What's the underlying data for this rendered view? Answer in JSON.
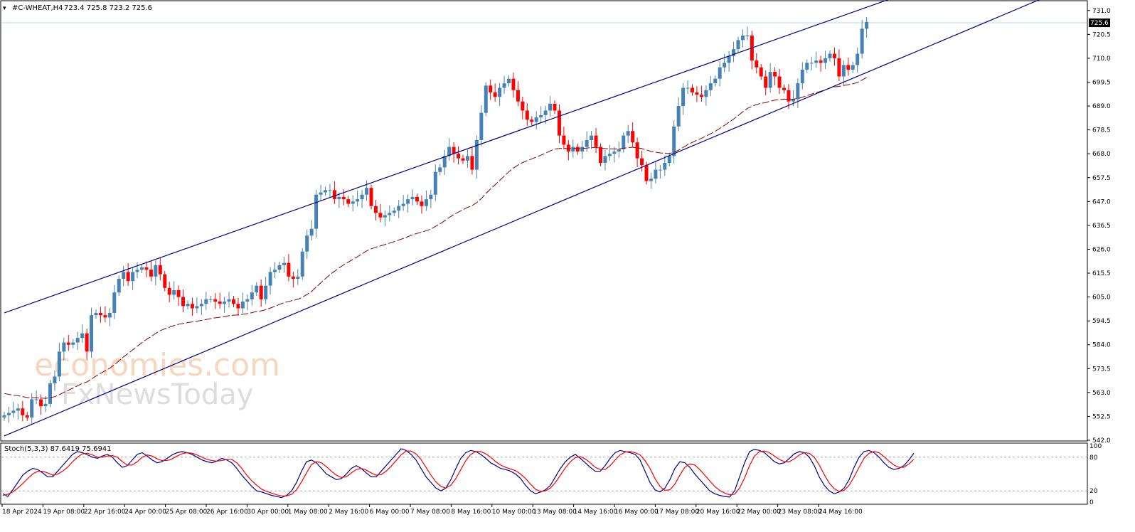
{
  "header": {
    "symbol": "#C-WHEAT,H4",
    "ohlc": "723.4 725.8 723.2 725.6"
  },
  "watermark": {
    "line1": "economies.com",
    "line2": "FxNewsToday"
  },
  "colors": {
    "up_candle": "#4682b4",
    "down_candle": "#ff0000",
    "channel": "#00008b",
    "ma": "#8b0000",
    "current_line": "#a8dce8",
    "stoch_main": "#00008b",
    "stoch_signal": "#ff0000",
    "grid": "#000000"
  },
  "chart_data": [
    {
      "type": "candlestick",
      "symbol": "#C-WHEAT",
      "timeframe": "H4",
      "y_ticks": [
        "731.0",
        "720.5",
        "710.0",
        "699.5",
        "689.0",
        "678.5",
        "668.0",
        "657.5",
        "647.0",
        "636.5",
        "626.0",
        "615.5",
        "605.0",
        "594.5",
        "584.0",
        "573.5",
        "563.0",
        "552.5",
        "542.0"
      ],
      "ylim": [
        542.0,
        735.0
      ],
      "current_price": "725.6",
      "x_labels": [
        "18 Apr 2024",
        "19 Apr 08:00",
        "22 Apr 16:00",
        "24 Apr 00:00",
        "25 Apr 08:00",
        "26 Apr 16:00",
        "30 Apr 00:00",
        "1 May 08:00",
        "2 May 16:00",
        "6 May 00:00",
        "7 May 08:00",
        "8 May 16:00",
        "10 May 00:00",
        "13 May 08:00",
        "14 May 16:00",
        "16 May 00:00",
        "17 May 08:00",
        "20 May 16:00",
        "22 May 00:00",
        "23 May 08:00",
        "24 May 16:00"
      ],
      "closes": [
        553,
        554,
        555,
        556,
        553,
        552,
        560,
        560,
        557,
        558,
        567,
        570,
        581,
        585,
        584,
        585,
        587,
        589,
        581,
        597,
        598,
        597,
        596,
        598,
        607,
        613,
        616,
        612,
        616,
        617,
        618,
        617,
        614,
        619,
        615,
        609,
        606,
        608,
        605,
        601,
        602,
        600,
        601,
        602,
        604,
        604,
        603,
        602,
        603,
        604,
        602,
        600,
        603,
        604,
        607,
        610,
        604,
        610,
        616,
        617,
        619,
        620,
        614,
        613,
        614,
        625,
        632,
        635,
        650,
        651,
        652,
        652,
        648,
        649,
        648,
        646,
        647,
        648,
        650,
        653,
        645,
        642,
        640,
        641,
        642,
        643,
        645,
        646,
        648,
        649,
        647,
        645,
        648,
        650,
        660,
        662,
        667,
        671,
        668,
        666,
        665,
        667,
        661,
        674,
        686,
        698,
        695,
        693,
        697,
        699,
        701,
        696,
        691,
        687,
        683,
        682,
        684,
        685,
        687,
        690,
        687,
        676,
        672,
        669,
        671,
        669,
        671,
        674,
        676,
        671,
        664,
        667,
        668,
        669,
        670,
        676,
        678,
        673,
        666,
        663,
        656,
        657,
        661,
        661,
        664,
        667,
        680,
        689,
        697,
        697,
        695,
        694,
        693,
        696,
        699,
        701,
        706,
        708,
        711,
        714,
        718,
        720,
        720,
        709,
        706,
        702,
        697,
        704,
        702,
        697,
        696,
        691,
        692,
        699,
        705,
        708,
        708,
        709,
        708,
        710,
        712,
        710,
        702,
        707,
        705,
        707,
        712,
        723,
        726
      ],
      "ma_start": 563,
      "ma_end": 693,
      "channel_upper": [
        {
          "x": 0,
          "y": 598
        },
        {
          "x": 193,
          "y": 736
        }
      ],
      "channel_lower": [
        {
          "x": 6,
          "y": 549
        },
        {
          "x": 193,
          "y": 708
        }
      ]
    },
    {
      "type": "line",
      "title": "Stoch(5,3,3) 87.6419 75.6941",
      "y_ticks": [
        "100",
        "80",
        "20",
        "0"
      ],
      "ylim": [
        0,
        100
      ],
      "levels": [
        80,
        20
      ],
      "series": [
        {
          "name": "main",
          "values": [
            15,
            10,
            22,
            35,
            48,
            55,
            60,
            58,
            52,
            45,
            45,
            55,
            65,
            75,
            85,
            90,
            88,
            84,
            80,
            78,
            82,
            85,
            80,
            70,
            62,
            65,
            75,
            85,
            88,
            82,
            75,
            70,
            72,
            78,
            84,
            88,
            90,
            88,
            85,
            80,
            75,
            72,
            70,
            73,
            78,
            75,
            70,
            60,
            48,
            38,
            28,
            20,
            18,
            15,
            12,
            10,
            8,
            12,
            20,
            35,
            55,
            72,
            75,
            70,
            60,
            50,
            45,
            40,
            42,
            50,
            60,
            65,
            60,
            52,
            45,
            45,
            55,
            65,
            75,
            85,
            95,
            92,
            85,
            75,
            60,
            45,
            35,
            25,
            20,
            25,
            40,
            60,
            78,
            88,
            92,
            90,
            85,
            78,
            70,
            65,
            60,
            58,
            55,
            50,
            42,
            30,
            20,
            15,
            18,
            22,
            30,
            45,
            60,
            72,
            80,
            85,
            78,
            70,
            62,
            55,
            55,
            65,
            78,
            88,
            92,
            90,
            88,
            85,
            75,
            55,
            35,
            22,
            18,
            25,
            40,
            60,
            72,
            70,
            62,
            50,
            40,
            30,
            20,
            15,
            12,
            10,
            9,
            20,
            45,
            70,
            90,
            94,
            92,
            88,
            80,
            72,
            68,
            70,
            78,
            86,
            90,
            88,
            80,
            65,
            45,
            30,
            20,
            15,
            18,
            25,
            40,
            62,
            80,
            90,
            92,
            88,
            80,
            70,
            62,
            58,
            60,
            65,
            75,
            87
          ]
        },
        {
          "name": "signal",
          "values": [
            12,
            14,
            18,
            25,
            33,
            42,
            50,
            55,
            55,
            52,
            48,
            50,
            55,
            62,
            72,
            80,
            86,
            87,
            84,
            80,
            80,
            82,
            83,
            80,
            72,
            66,
            66,
            72,
            80,
            84,
            82,
            77,
            74,
            74,
            77,
            82,
            86,
            88,
            87,
            84,
            80,
            76,
            74,
            73,
            74,
            76,
            76,
            70,
            60,
            48,
            38,
            30,
            23,
            19,
            16,
            13,
            11,
            11,
            14,
            22,
            36,
            52,
            67,
            72,
            70,
            63,
            55,
            48,
            44,
            45,
            52,
            58,
            60,
            57,
            52,
            48,
            49,
            55,
            64,
            74,
            84,
            91,
            91,
            86,
            76,
            62,
            48,
            36,
            28,
            25,
            30,
            42,
            58,
            74,
            85,
            90,
            90,
            86,
            80,
            72,
            66,
            62,
            59,
            56,
            50,
            42,
            32,
            23,
            19,
            20,
            25,
            35,
            48,
            61,
            72,
            79,
            81,
            77,
            70,
            62,
            58,
            58,
            65,
            75,
            84,
            89,
            90,
            88,
            84,
            74,
            60,
            42,
            28,
            21,
            22,
            32,
            48,
            62,
            68,
            66,
            58,
            48,
            38,
            28,
            21,
            16,
            13,
            14,
            25,
            43,
            65,
            82,
            90,
            91,
            88,
            82,
            76,
            72,
            72,
            77,
            84,
            88,
            87,
            80,
            66,
            49,
            34,
            24,
            19,
            21,
            30,
            45,
            62,
            78,
            87,
            90,
            88,
            81,
            73,
            66,
            62,
            62,
            68,
            76
          ]
        }
      ]
    }
  ]
}
